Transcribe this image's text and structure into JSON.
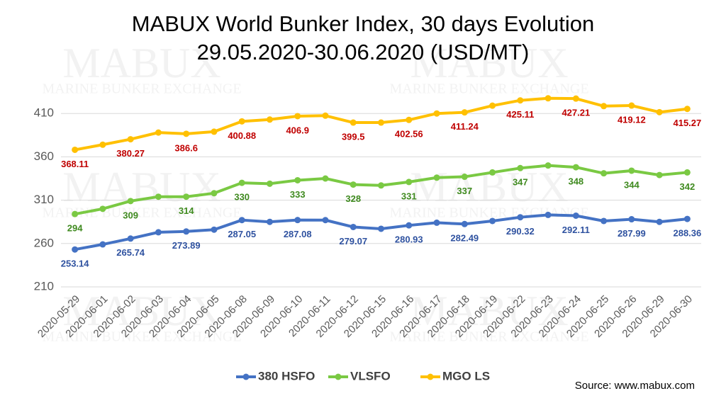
{
  "chart_data": {
    "type": "line",
    "title": "MABUX World Bunker Index, 30 days Evolution",
    "subtitle": "29.05.2020-30.06.2020 (USD/MT)",
    "watermark": [
      "MABUX",
      "MARINE BUNKER EXCHANGE"
    ],
    "source": "Source: www.mabux.com",
    "categories": [
      "2020-05-29",
      "2020-06-01",
      "2020-06-02",
      "2020-06-03",
      "2020-06-04",
      "2020-06-05",
      "2020-06-08",
      "2020-06-09",
      "2020-06-10",
      "2020-06-11",
      "2020-06-12",
      "2020-06-15",
      "2020-06-16",
      "2020-06-17",
      "2020-06-18",
      "2020-06-19",
      "2020-06-22",
      "2020-06-23",
      "2020-06-24",
      "2020-06-25",
      "2020-06-26",
      "2020-06-29",
      "2020-06-30"
    ],
    "series": [
      {
        "name": "380 HSFO",
        "color": "#4472c4",
        "label_color": "#2f52a0",
        "values": [
          253.14,
          259,
          265.74,
          273,
          273.89,
          276,
          287.05,
          285,
          287.08,
          287,
          279.07,
          277,
          280.93,
          284,
          282.49,
          286,
          290.32,
          293,
          292.11,
          286,
          287.99,
          285,
          288.36
        ]
      },
      {
        "name": "VLSFO",
        "color": "#7ac943",
        "label_color": "#3f8a1f",
        "values": [
          294,
          300,
          309,
          314,
          314,
          318,
          330,
          329,
          333,
          335,
          328,
          327,
          331,
          336,
          337,
          342,
          347,
          350,
          348,
          341,
          344,
          339,
          342
        ]
      },
      {
        "name": "MGO LS",
        "color": "#ffc000",
        "label_color": "#c00000",
        "values": [
          368.11,
          374,
          380.27,
          388,
          386.6,
          389,
          400.88,
          403,
          406.9,
          407.5,
          399.5,
          399.5,
          402.56,
          410,
          411.24,
          419,
          425.11,
          427.5,
          427.21,
          418.5,
          419.12,
          411.5,
          415.27
        ]
      }
    ],
    "ylim": [
      210,
      460
    ],
    "yticks": [
      210,
      260,
      310,
      360,
      410
    ],
    "grid": true,
    "legend": "bottom"
  }
}
